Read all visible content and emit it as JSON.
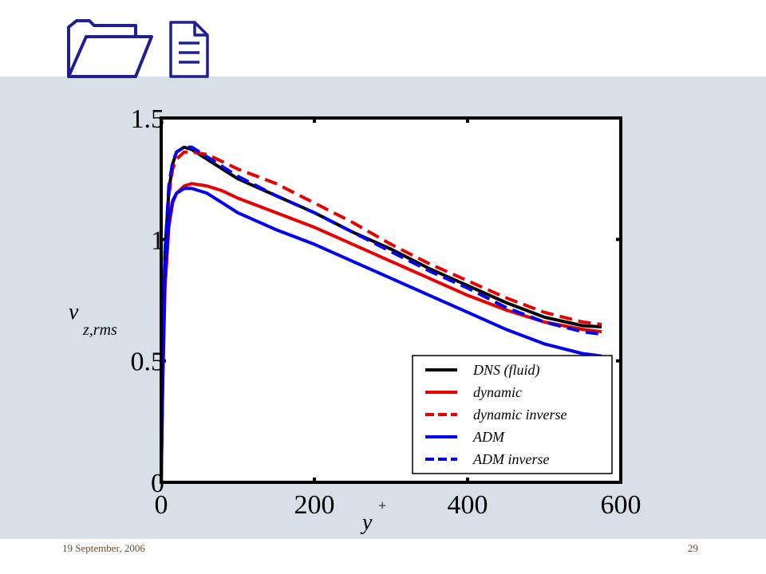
{
  "slide": {
    "date": "19 September, 2006",
    "page_number": "29",
    "accent_color": "#1f1f8f",
    "background_color": "#d6e0e6",
    "icons": [
      "folder-icon",
      "document-icon"
    ]
  },
  "chart_data": {
    "type": "line",
    "title": "",
    "xlabel": "y",
    "xlabel_superscript": "+",
    "ylabel": "v",
    "ylabel_subscript": "z,rms",
    "xlim": [
      0,
      600
    ],
    "ylim": [
      0,
      1.5
    ],
    "xticks": [
      0,
      200,
      400,
      600
    ],
    "xtick_labels": [
      "0",
      "200",
      "400",
      "600"
    ],
    "yticks": [
      0,
      0.5,
      1,
      1.5
    ],
    "ytick_labels": [
      "0",
      "0.5",
      "1",
      "1.5"
    ],
    "grid": false,
    "legend_position": "bottom-right",
    "series": [
      {
        "name": "DNS (fluid)",
        "color": "#000000",
        "dash": "solid",
        "x": [
          0,
          2,
          5,
          10,
          15,
          20,
          30,
          40,
          60,
          80,
          100,
          150,
          200,
          250,
          300,
          350,
          400,
          450,
          500,
          550,
          575
        ],
        "y": [
          0,
          0.5,
          0.95,
          1.2,
          1.31,
          1.36,
          1.38,
          1.37,
          1.33,
          1.29,
          1.25,
          1.18,
          1.11,
          1.03,
          0.96,
          0.88,
          0.81,
          0.74,
          0.68,
          0.645,
          0.64
        ]
      },
      {
        "name": "dynamic",
        "color": "#e60000",
        "dash": "solid",
        "x": [
          0,
          2,
          5,
          10,
          15,
          20,
          30,
          40,
          60,
          80,
          100,
          150,
          200,
          250,
          300,
          350,
          400,
          450,
          500,
          550,
          575
        ],
        "y": [
          0,
          0.4,
          0.8,
          1.05,
          1.15,
          1.19,
          1.22,
          1.23,
          1.22,
          1.2,
          1.17,
          1.11,
          1.05,
          0.98,
          0.91,
          0.84,
          0.77,
          0.71,
          0.66,
          0.63,
          0.62
        ]
      },
      {
        "name": "dynamic inverse",
        "color": "#e60000",
        "dash": "dashed",
        "x": [
          0,
          2,
          5,
          10,
          15,
          20,
          30,
          40,
          60,
          80,
          100,
          150,
          200,
          250,
          300,
          350,
          400,
          450,
          500,
          550,
          575
        ],
        "y": [
          0,
          0.45,
          0.9,
          1.18,
          1.29,
          1.33,
          1.36,
          1.36,
          1.35,
          1.32,
          1.29,
          1.23,
          1.15,
          1.07,
          0.98,
          0.9,
          0.83,
          0.76,
          0.7,
          0.66,
          0.65
        ]
      },
      {
        "name": "ADM",
        "color": "#0000ee",
        "dash": "solid",
        "x": [
          0,
          2,
          5,
          10,
          15,
          20,
          30,
          40,
          60,
          80,
          100,
          150,
          200,
          250,
          300,
          350,
          400,
          450,
          500,
          550,
          575
        ],
        "y": [
          0,
          0.42,
          0.85,
          1.08,
          1.16,
          1.19,
          1.21,
          1.21,
          1.19,
          1.15,
          1.11,
          1.04,
          0.98,
          0.91,
          0.84,
          0.77,
          0.7,
          0.63,
          0.57,
          0.53,
          0.52
        ]
      },
      {
        "name": "ADM inverse",
        "color": "#0000ee",
        "dash": "dashed",
        "x": [
          0,
          2,
          5,
          10,
          15,
          20,
          30,
          40,
          60,
          80,
          100,
          150,
          200,
          250,
          300,
          350,
          400,
          450,
          500,
          550,
          575
        ],
        "y": [
          0,
          0.5,
          0.95,
          1.22,
          1.32,
          1.36,
          1.38,
          1.38,
          1.34,
          1.3,
          1.26,
          1.18,
          1.11,
          1.03,
          0.95,
          0.87,
          0.8,
          0.72,
          0.66,
          0.62,
          0.61
        ]
      }
    ]
  }
}
